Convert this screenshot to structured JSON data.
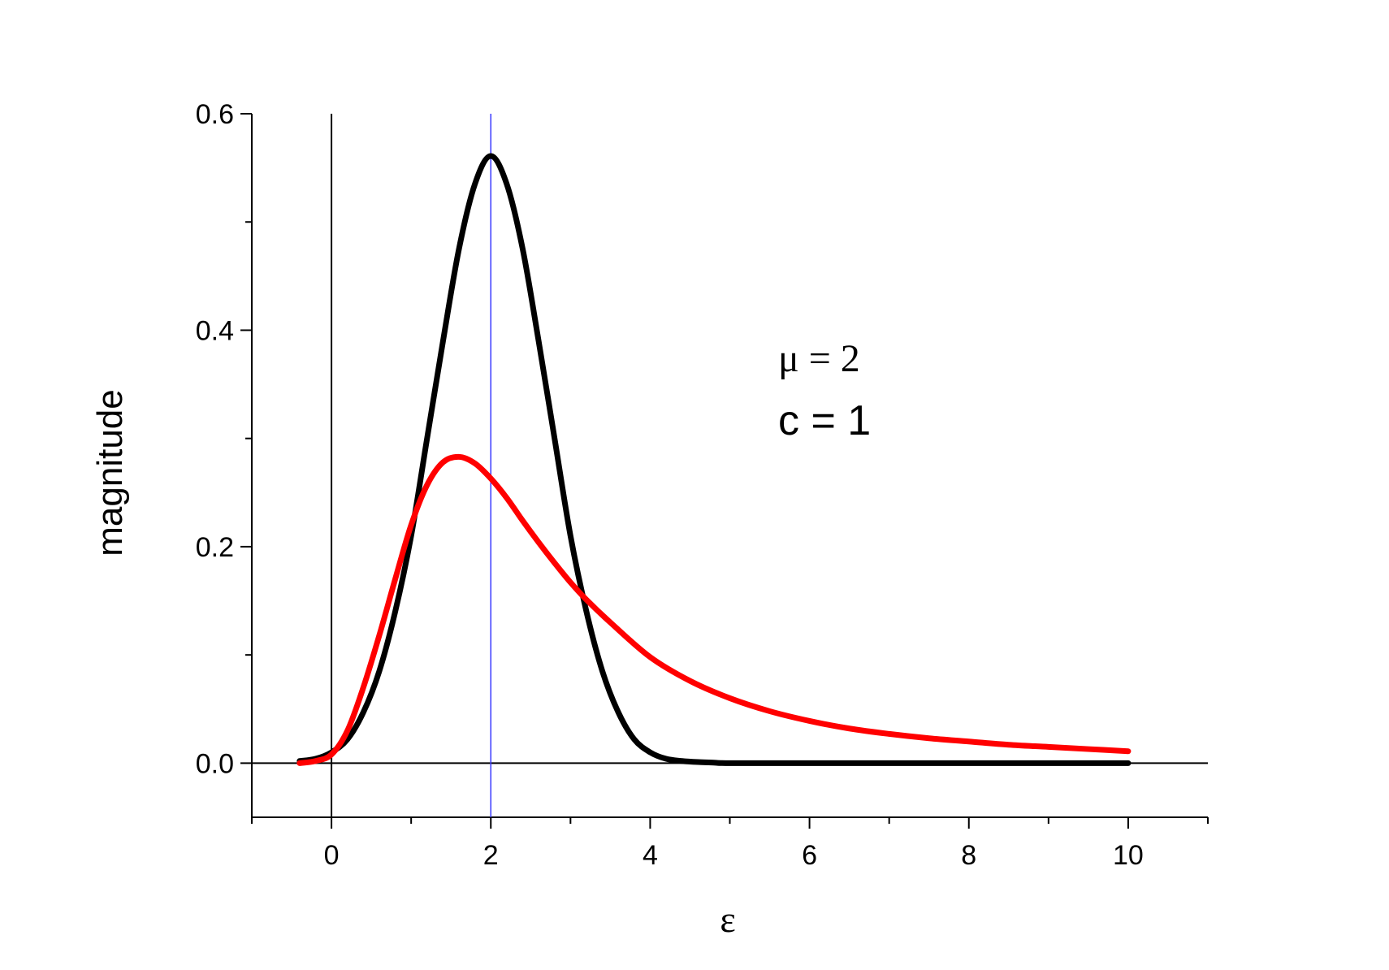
{
  "chart_data": {
    "type": "line",
    "title": "",
    "xlabel": "ε",
    "ylabel": "magnitude",
    "xlim": [
      -1,
      11
    ],
    "ylim": [
      -0.05,
      0.6
    ],
    "x_ticks": [
      0,
      2,
      4,
      6,
      8,
      10
    ],
    "y_ticks": [
      0.0,
      0.2,
      0.4,
      0.6
    ],
    "grid": false,
    "legend": "none",
    "annotations": [
      {
        "id": "mu",
        "text": "μ = 2",
        "x": 6.7,
        "y": 0.37
      },
      {
        "id": "c",
        "text": "c = 1",
        "x": 6.7,
        "y": 0.31
      }
    ],
    "reference_lines": {
      "vertical_zero": 0,
      "vertical_mu": 2,
      "horizontal_zero": 0
    },
    "series": [
      {
        "color": "#000000",
        "x": [
          -0.4,
          -0.2,
          0,
          0.2,
          0.4,
          0.6,
          0.8,
          1.0,
          1.2,
          1.4,
          1.6,
          1.8,
          2.0,
          2.2,
          2.4,
          2.6,
          2.8,
          3.0,
          3.2,
          3.4,
          3.6,
          3.8,
          4.0,
          4.2,
          4.4,
          4.6,
          4.8,
          5.0,
          6.0,
          7.0,
          8.0,
          9.0,
          10.0
        ],
        "y": [
          0.002,
          0.004,
          0.01,
          0.022,
          0.047,
          0.085,
          0.14,
          0.21,
          0.3,
          0.39,
          0.475,
          0.535,
          0.561,
          0.535,
          0.475,
          0.39,
          0.3,
          0.21,
          0.14,
          0.085,
          0.047,
          0.022,
          0.01,
          0.004,
          0.002,
          0.001,
          0.0005,
          0.0,
          0.0,
          0.0,
          0.0,
          0.0,
          0.0
        ]
      },
      {
        "color": "#ff0000",
        "x": [
          -0.4,
          -0.2,
          0,
          0.2,
          0.4,
          0.6,
          0.8,
          1.0,
          1.2,
          1.4,
          1.6,
          1.8,
          2.0,
          2.2,
          2.4,
          2.6,
          2.8,
          3.0,
          3.2,
          3.5,
          4.0,
          4.5,
          5.0,
          5.5,
          6.0,
          6.5,
          7.0,
          7.5,
          8.0,
          8.5,
          9.0,
          9.5,
          10.0
        ],
        "y": [
          0.0,
          0.002,
          0.008,
          0.03,
          0.07,
          0.118,
          0.17,
          0.22,
          0.257,
          0.278,
          0.283,
          0.277,
          0.263,
          0.245,
          0.224,
          0.204,
          0.185,
          0.167,
          0.151,
          0.13,
          0.098,
          0.076,
          0.06,
          0.048,
          0.039,
          0.032,
          0.027,
          0.023,
          0.02,
          0.017,
          0.015,
          0.013,
          0.011
        ]
      }
    ]
  }
}
